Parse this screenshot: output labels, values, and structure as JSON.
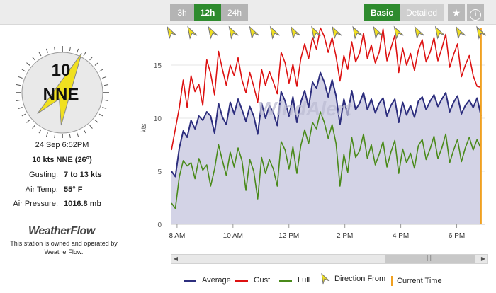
{
  "toolbar": {
    "range_buttons": [
      "3h",
      "12h",
      "24h"
    ],
    "selected_range": "12h",
    "view_buttons": [
      "Basic",
      "Detailed"
    ],
    "selected_view": "Basic",
    "star_icon": "star-icon",
    "info_icon": "info-icon"
  },
  "compass": {
    "speed": "10",
    "direction": "NNE",
    "arrow_color": "#f0e020",
    "degrees": 26
  },
  "station": {
    "datetime": "24 Sep 6:52PM",
    "summary": "10 kts NNE (26°)",
    "gusting_label": "Gusting:",
    "gusting_value": "7 to 13 kts",
    "air_temp_label": "Air Temp:",
    "air_temp_value": "55° F",
    "air_pressure_label": "Air Pressure:",
    "air_pressure_value": "1016.8 mb",
    "logo": "WeatherFlow",
    "owned_text_1": "This station is owned and operated by",
    "owned_text_2": "WeatherFlow."
  },
  "watermark": "WindAlert",
  "chart_data": {
    "type": "line",
    "ylabel": "kts",
    "ylim": [
      0,
      20
    ],
    "yticks": [
      "0",
      "5",
      "10",
      "15"
    ],
    "xlim": [
      7.8,
      19.0
    ],
    "xticks": [
      "8 AM",
      "10 AM",
      "12 PM",
      "2 PM",
      "4 PM",
      "6 PM"
    ],
    "current_time": 18.87,
    "colors": {
      "average": "#2d2e7e",
      "gust": "#dd1111",
      "lull": "#4a8a1a",
      "area": "#d3d3e6",
      "current": "#f0a020"
    },
    "direction_arrows": 16,
    "series": [
      {
        "name": "Average",
        "values": [
          5.0,
          4.5,
          7.2,
          8.8,
          8.2,
          9.8,
          9.0,
          10.2,
          9.8,
          10.6,
          10.2,
          8.6,
          11.4,
          10.1,
          9.4,
          11.5,
          10.4,
          11.8,
          10.8,
          9.7,
          11.1,
          10.2,
          8.5,
          11.4,
          10.0,
          11.2,
          10.5,
          9.3,
          12.5,
          11.6,
          10.2,
          12.0,
          9.6,
          11.5,
          12.6,
          11.0,
          13.4,
          12.8,
          14.3,
          13.4,
          12.0,
          13.6,
          12.1,
          9.4,
          11.8,
          10.3,
          12.6,
          10.8,
          11.4,
          12.4,
          10.8,
          11.8,
          10.5,
          11.4,
          11.9,
          10.2,
          11.2,
          11.8,
          9.6,
          11.5,
          10.3,
          11.2,
          10.1,
          11.6,
          12.0,
          10.8,
          11.6,
          12.2,
          11.1,
          11.8,
          12.4,
          10.6,
          11.5,
          12.1,
          10.4,
          11.2,
          11.7,
          11.0,
          11.9,
          10.2
        ]
      },
      {
        "name": "Gust",
        "values": [
          7.0,
          9.0,
          11.0,
          13.6,
          11.0,
          14.0,
          12.5,
          13.2,
          11.2,
          15.5,
          14.2,
          12.2,
          16.3,
          14.6,
          13.1,
          15.0,
          14.0,
          15.7,
          13.6,
          12.4,
          14.3,
          13.0,
          11.5,
          14.6,
          13.1,
          14.4,
          13.4,
          12.3,
          16.2,
          15.2,
          13.3,
          15.1,
          13.0,
          15.6,
          17.0,
          15.6,
          17.6,
          16.5,
          18.5,
          17.7,
          16.2,
          17.6,
          15.8,
          13.5,
          15.9,
          14.6,
          17.2,
          15.3,
          16.1,
          18.0,
          15.6,
          16.9,
          15.2,
          16.2,
          18.4,
          15.4,
          16.6,
          17.8,
          14.3,
          16.6,
          15.0,
          16.1,
          14.5,
          16.4,
          17.4,
          15.3,
          16.2,
          17.6,
          15.4,
          16.6,
          17.9,
          14.8,
          16.0,
          17.0,
          13.9,
          15.0,
          15.9,
          14.0,
          13.0,
          12.9
        ]
      },
      {
        "name": "Lull",
        "values": [
          2.0,
          1.5,
          4.5,
          6.0,
          5.5,
          5.8,
          4.3,
          6.2,
          5.1,
          5.6,
          3.6,
          5.2,
          7.5,
          6.0,
          4.6,
          6.8,
          5.4,
          7.2,
          6.0,
          3.2,
          6.1,
          5.0,
          2.4,
          6.3,
          4.8,
          6.1,
          5.2,
          3.6,
          7.8,
          7.0,
          5.2,
          7.3,
          4.8,
          7.4,
          8.9,
          7.6,
          9.6,
          9.0,
          10.6,
          9.6,
          8.1,
          9.4,
          7.6,
          3.6,
          6.6,
          4.9,
          8.2,
          6.3,
          6.9,
          8.5,
          6.2,
          7.5,
          5.6,
          6.6,
          7.8,
          5.4,
          6.8,
          7.9,
          4.8,
          7.1,
          5.8,
          6.7,
          5.3,
          7.4,
          8.0,
          6.1,
          7.1,
          8.3,
          6.2,
          7.2,
          8.5,
          5.8,
          7.0,
          8.0,
          5.9,
          7.2,
          8.2,
          7.0,
          8.0,
          7.1
        ]
      }
    ]
  },
  "legend": {
    "average": "Average",
    "gust": "Gust",
    "lull": "Lull",
    "direction": "Direction From",
    "current": "Current Time"
  }
}
